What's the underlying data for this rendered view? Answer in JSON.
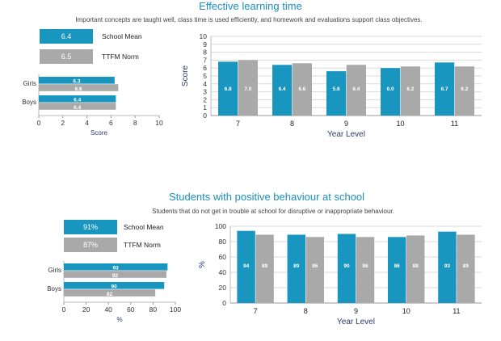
{
  "colors": {
    "school": "#1996bf",
    "norm": "#a9a9a9",
    "axis": "#555555",
    "grid": "#d9d9d9",
    "navy": "#2b3a6b"
  },
  "sections": [
    {
      "title": "Effective learning time",
      "subtitle": "Important concepts are taught well, class time is used efficiently, and homework and evaluations support class objectives.",
      "legend": [
        {
          "value": "6.4",
          "label": "School Mean"
        },
        {
          "value": "6.5",
          "label": "TTFM Norm"
        }
      ]
    },
    {
      "title": "Students with positive behaviour at school",
      "subtitle": "Students that do not get in trouble at school for disruptive or inappropriate behaviour.",
      "legend": [
        {
          "value": "91%",
          "label": "School Mean"
        },
        {
          "value": "87%",
          "label": "TTFM Norm"
        }
      ]
    }
  ],
  "chart_data": [
    {
      "type": "bar",
      "orientation": "horizontal",
      "categories": [
        "Girls",
        "Boys"
      ],
      "series": [
        {
          "name": "School Mean",
          "values": [
            6.3,
            6.4
          ],
          "labels": [
            "6.3",
            "6.4"
          ]
        },
        {
          "name": "TTFM Norm",
          "values": [
            6.6,
            6.4
          ],
          "labels": [
            "6.6",
            "6.4"
          ]
        }
      ],
      "xlabel": "Score",
      "xlim": [
        0,
        10
      ],
      "ticks": [
        0,
        2,
        4,
        6,
        8,
        10
      ],
      "tick_labels": [
        "0",
        "2",
        "4",
        "6",
        "8",
        "10"
      ]
    },
    {
      "type": "bar",
      "categories": [
        "7",
        "8",
        "9",
        "10",
        "11"
      ],
      "series": [
        {
          "name": "School Mean",
          "values": [
            6.8,
            6.4,
            5.6,
            6.0,
            6.7
          ],
          "labels": [
            "6.8",
            "6.4",
            "5.6",
            "6.0",
            "6.7"
          ]
        },
        {
          "name": "TTFM Norm",
          "values": [
            7.0,
            6.6,
            6.4,
            6.2,
            6.2
          ],
          "labels": [
            "7.0",
            "6.6",
            "6.4",
            "6.2",
            "6.2"
          ]
        }
      ],
      "xlabel": "Year Level",
      "ylabel": "Score",
      "ylim": [
        0,
        10
      ],
      "ticks": [
        0,
        1,
        2,
        3,
        4,
        5,
        6,
        7,
        8,
        9,
        10
      ],
      "tick_labels": [
        "0",
        "1",
        "2",
        "3",
        "4",
        "5",
        "6",
        "7",
        "8",
        "9",
        "10"
      ],
      "grid": true
    },
    {
      "type": "bar",
      "orientation": "horizontal",
      "categories": [
        "Girls",
        "Boys"
      ],
      "series": [
        {
          "name": "School Mean",
          "values": [
            93,
            90
          ],
          "labels": [
            "93",
            "90"
          ]
        },
        {
          "name": "TTFM Norm",
          "values": [
            92,
            82
          ],
          "labels": [
            "92",
            "82"
          ]
        }
      ],
      "xlabel": "%",
      "xlim": [
        0,
        100
      ],
      "ticks": [
        0,
        20,
        40,
        60,
        80,
        100
      ],
      "tick_labels": [
        "0",
        "20",
        "40",
        "60",
        "80",
        "100"
      ]
    },
    {
      "type": "bar",
      "categories": [
        "7",
        "8",
        "9",
        "10",
        "11"
      ],
      "series": [
        {
          "name": "School Mean",
          "values": [
            94,
            89,
            90,
            86,
            93
          ],
          "labels": [
            "94",
            "89",
            "90",
            "86",
            "93"
          ]
        },
        {
          "name": "TTFM Norm",
          "values": [
            89,
            86,
            86,
            88,
            89
          ],
          "labels": [
            "89",
            "86",
            "86",
            "88",
            "89"
          ]
        }
      ],
      "xlabel": "Year Level",
      "ylabel": "%",
      "ylim": [
        0,
        100
      ],
      "ticks": [
        0,
        20,
        40,
        60,
        80,
        100
      ],
      "tick_labels": [
        "0",
        "20",
        "40",
        "60",
        "80",
        "100"
      ],
      "grid": true
    }
  ]
}
